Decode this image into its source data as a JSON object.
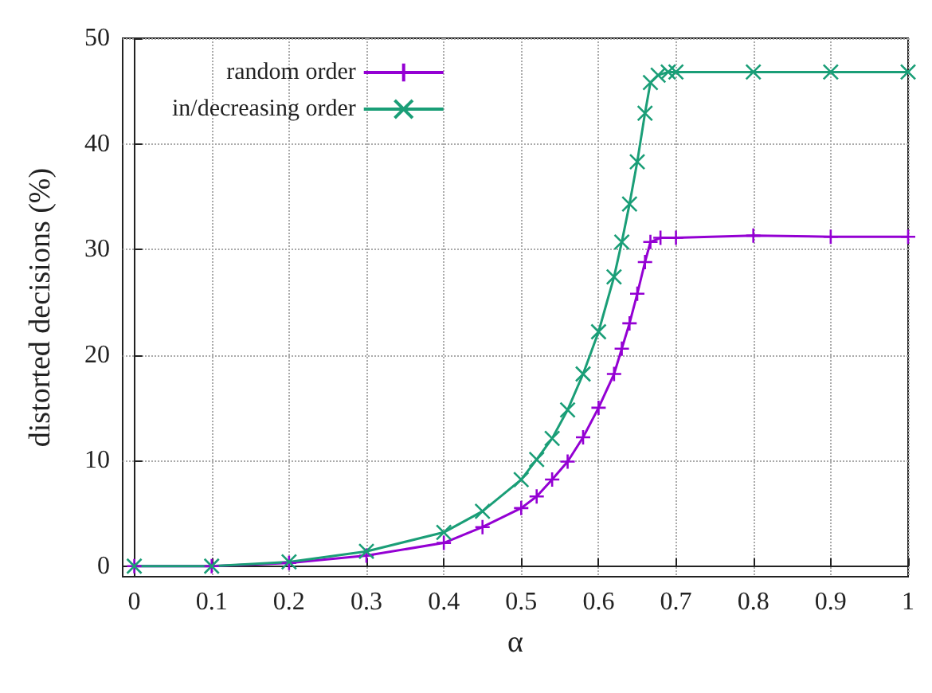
{
  "chart_data": {
    "type": "line",
    "xlabel": "α",
    "ylabel": "distorted decisions (%)",
    "xlim": [
      -0.015,
      1
    ],
    "ylim": [
      -1,
      50
    ],
    "xticks": [
      0,
      0.1,
      0.2,
      0.3,
      0.4,
      0.5,
      0.6,
      0.7,
      0.8,
      0.9,
      1
    ],
    "yticks": [
      0,
      10,
      20,
      30,
      40,
      50
    ],
    "grid": true,
    "legend": "top left",
    "series": [
      {
        "name": "random order",
        "color": "#9400d3",
        "marker": "cross",
        "x": [
          0,
          0.1,
          0.2,
          0.3,
          0.4,
          0.45,
          0.5,
          0.52,
          0.54,
          0.56,
          0.58,
          0.6,
          0.62,
          0.63,
          0.64,
          0.65,
          0.66,
          0.667,
          0.68,
          0.7,
          0.8,
          0.9,
          1
        ],
        "values": [
          0,
          0,
          0.3,
          1,
          2.2,
          3.7,
          5.5,
          6.6,
          8.2,
          9.9,
          12.2,
          15,
          18.2,
          20.6,
          23,
          25.8,
          28.8,
          30.7,
          31.1,
          31.1,
          31.3,
          31.2,
          31.2
        ]
      },
      {
        "name": "in/decreasing order",
        "color": "#1a9e77",
        "marker": "x",
        "x": [
          0,
          0.1,
          0.2,
          0.3,
          0.4,
          0.45,
          0.5,
          0.52,
          0.54,
          0.56,
          0.58,
          0.6,
          0.62,
          0.63,
          0.64,
          0.65,
          0.66,
          0.667,
          0.677,
          0.69,
          0.7,
          0.8,
          0.9,
          1
        ],
        "values": [
          0,
          0,
          0.4,
          1.4,
          3.2,
          5.2,
          8.2,
          10.1,
          12.1,
          14.8,
          18.2,
          22.2,
          27.4,
          30.7,
          34.3,
          38.3,
          42.9,
          45.8,
          46.5,
          46.8,
          46.8,
          46.8,
          46.8,
          46.8
        ]
      }
    ],
    "line_style": "solid"
  }
}
